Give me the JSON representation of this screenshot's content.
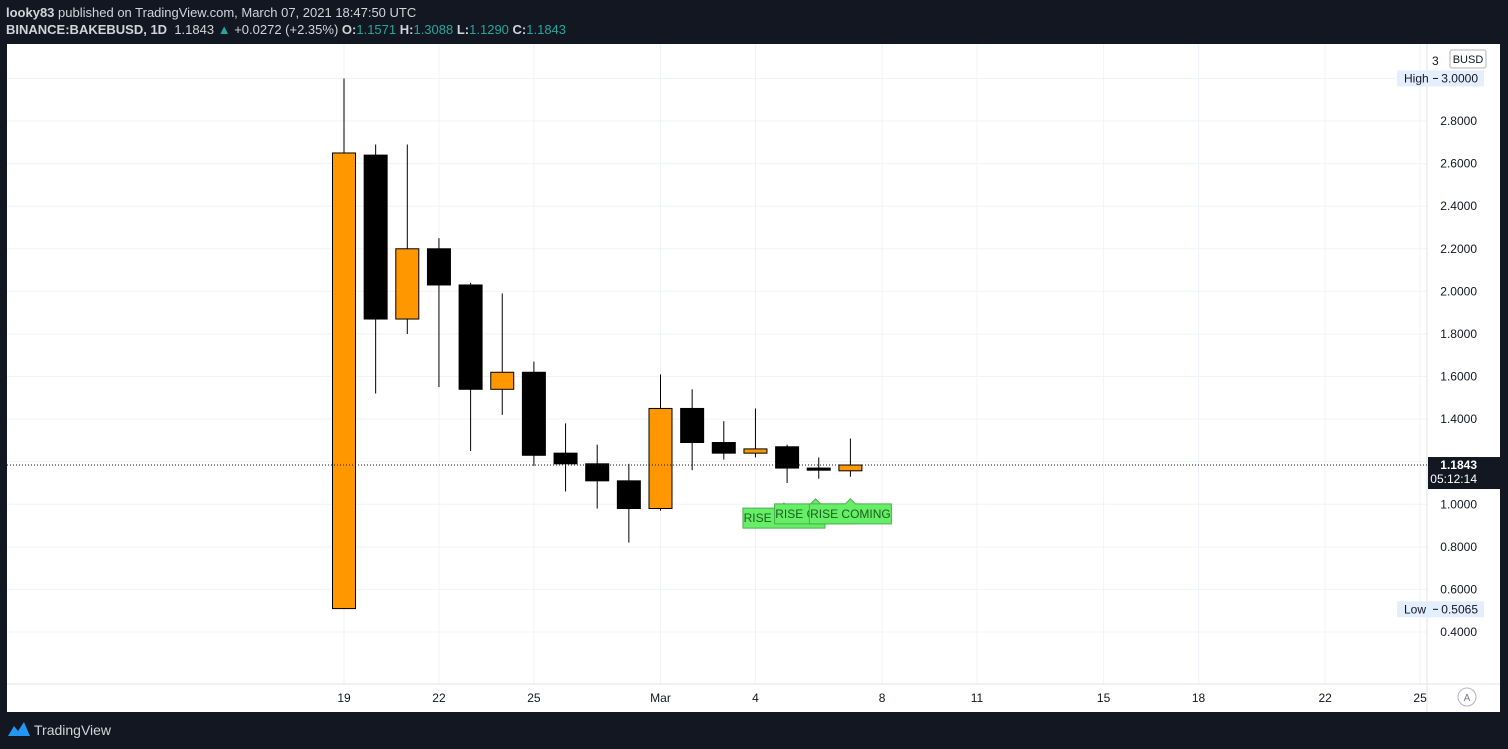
{
  "header": {
    "publisher": "looky83",
    "published_text": "published on TradingView.com, March 07, 2021 18:47:50 UTC",
    "symbol": "BINANCE:BAKEBUSD, 1D",
    "last": "1.1843",
    "change": "+0.0272 (+2.35%)",
    "o_label": "O:",
    "o": "1.1571",
    "h_label": "H:",
    "h": "1.3088",
    "l_label": "L:",
    "l": "1.1290",
    "c_label": "C:",
    "c": "1.1843"
  },
  "footer": {
    "brand": "TradingView"
  },
  "chart_data": {
    "type": "candlestick",
    "currency": "BUSD",
    "ylim": [
      0.3,
      3.1
    ],
    "price_ticks": [
      "0.4000",
      "0.6000",
      "0.8000",
      "1.0000",
      "1.2000",
      "1.4000",
      "1.6000",
      "1.8000",
      "2.0000",
      "2.2000",
      "2.4000",
      "2.6000",
      "2.8000",
      "3.0000"
    ],
    "date_ticks": [
      {
        "label": "19",
        "day": 0
      },
      {
        "label": "22",
        "day": 3
      },
      {
        "label": "25",
        "day": 6
      },
      {
        "label": "Mar",
        "day": 10
      },
      {
        "label": "4",
        "day": 13
      },
      {
        "label": "8",
        "day": 17
      },
      {
        "label": "11",
        "day": 20
      },
      {
        "label": "15",
        "day": 24
      },
      {
        "label": "18",
        "day": 27
      },
      {
        "label": "22",
        "day": 31
      },
      {
        "label": "25",
        "day": 34
      }
    ],
    "candles": [
      {
        "date": "2021-02-19",
        "o": 0.51,
        "h": 3.0,
        "l": 0.51,
        "c": 2.65
      },
      {
        "date": "2021-02-20",
        "o": 2.64,
        "h": 2.69,
        "l": 1.52,
        "c": 1.87
      },
      {
        "date": "2021-02-21",
        "o": 1.87,
        "h": 2.69,
        "l": 1.8,
        "c": 2.2
      },
      {
        "date": "2021-02-22",
        "o": 2.2,
        "h": 2.25,
        "l": 1.55,
        "c": 2.03
      },
      {
        "date": "2021-02-23",
        "o": 2.03,
        "h": 2.04,
        "l": 1.25,
        "c": 1.54
      },
      {
        "date": "2021-02-24",
        "o": 1.54,
        "h": 1.99,
        "l": 1.42,
        "c": 1.62
      },
      {
        "date": "2021-02-25",
        "o": 1.62,
        "h": 1.67,
        "l": 1.18,
        "c": 1.23
      },
      {
        "date": "2021-02-26",
        "o": 1.24,
        "h": 1.38,
        "l": 1.06,
        "c": 1.19
      },
      {
        "date": "2021-02-27",
        "o": 1.19,
        "h": 1.28,
        "l": 0.98,
        "c": 1.11
      },
      {
        "date": "2021-02-28",
        "o": 1.11,
        "h": 1.19,
        "l": 0.82,
        "c": 0.98
      },
      {
        "date": "2021-03-01",
        "o": 0.98,
        "h": 1.61,
        "l": 0.97,
        "c": 1.45
      },
      {
        "date": "2021-03-02",
        "o": 1.45,
        "h": 1.54,
        "l": 1.16,
        "c": 1.29
      },
      {
        "date": "2021-03-03",
        "o": 1.29,
        "h": 1.39,
        "l": 1.21,
        "c": 1.24
      },
      {
        "date": "2021-03-04",
        "o": 1.24,
        "h": 1.45,
        "l": 1.22,
        "c": 1.26
      },
      {
        "date": "2021-03-05",
        "o": 1.27,
        "h": 1.28,
        "l": 1.1,
        "c": 1.17
      },
      {
        "date": "2021-03-06",
        "o": 1.17,
        "h": 1.22,
        "l": 1.12,
        "c": 1.16
      },
      {
        "date": "2021-03-07",
        "o": 1.1571,
        "h": 1.3088,
        "l": 1.129,
        "c": 1.1843
      }
    ],
    "current_price": "1.1843",
    "countdown": "05:12:14",
    "high_label": "High",
    "high_value": "3.0000",
    "low_label": "Low",
    "low_value": "0.5065",
    "annotations": [
      {
        "text": "RISE COMING",
        "day": 13.9,
        "price": 0.935
      },
      {
        "text": "RISE COMING",
        "day": 14.9,
        "price": 0.955
      },
      {
        "text": "RISE COMING",
        "day": 16.0,
        "price": 0.955
      }
    ],
    "colors": {
      "up": "#ff9800",
      "down": "#000000",
      "wick": "#000000",
      "label_bg": "#e3effd",
      "label_text": "#131722",
      "annotation_bg": "#66ee66",
      "annotation_text": "#1b5e20",
      "grid": "#f0f3fa"
    },
    "axis_mode_label": "A"
  }
}
